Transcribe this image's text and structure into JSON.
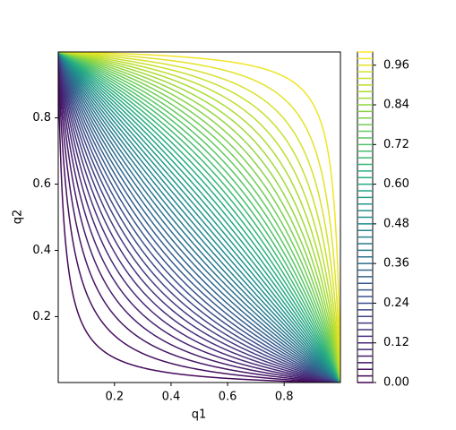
{
  "chart_data": {
    "type": "contour",
    "x_label": "q1",
    "y_label": "q2",
    "xlim": [
      0.001,
      0.999
    ],
    "ylim": [
      0.001,
      0.999
    ],
    "xticks": [
      0.2,
      0.4,
      0.6,
      0.8
    ],
    "yticks": [
      0.2,
      0.4,
      0.6,
      0.8
    ],
    "levels": [
      0,
      0.02,
      0.04,
      0.06,
      0.08,
      0.1,
      0.12,
      0.14,
      0.16,
      0.18,
      0.2,
      0.22,
      0.24,
      0.26,
      0.28,
      0.3,
      0.32,
      0.34,
      0.36,
      0.38,
      0.4,
      0.42,
      0.44,
      0.46,
      0.48,
      0.5,
      0.52,
      0.54,
      0.56,
      0.58,
      0.6,
      0.62,
      0.64,
      0.66,
      0.68,
      0.7,
      0.72,
      0.74,
      0.76,
      0.78,
      0.8,
      0.82,
      0.84,
      0.86,
      0.88,
      0.9,
      0.92,
      0.94,
      0.96,
      0.98,
      1
    ],
    "colormap": "viridis",
    "colorbar": {
      "lim": [
        0,
        1
      ],
      "ticks": [
        {
          "value": 0,
          "label": "0.00"
        },
        {
          "value": 0.12,
          "label": "0.12"
        },
        {
          "value": 0.24,
          "label": "0.24"
        },
        {
          "value": 0.36,
          "label": "0.36"
        },
        {
          "value": 0.48,
          "label": "0.48"
        },
        {
          "value": 0.6,
          "label": "0.60"
        },
        {
          "value": 0.72,
          "label": "0.72"
        },
        {
          "value": 0.84,
          "label": "0.84"
        },
        {
          "value": 0.96,
          "label": "0.96"
        }
      ]
    }
  }
}
